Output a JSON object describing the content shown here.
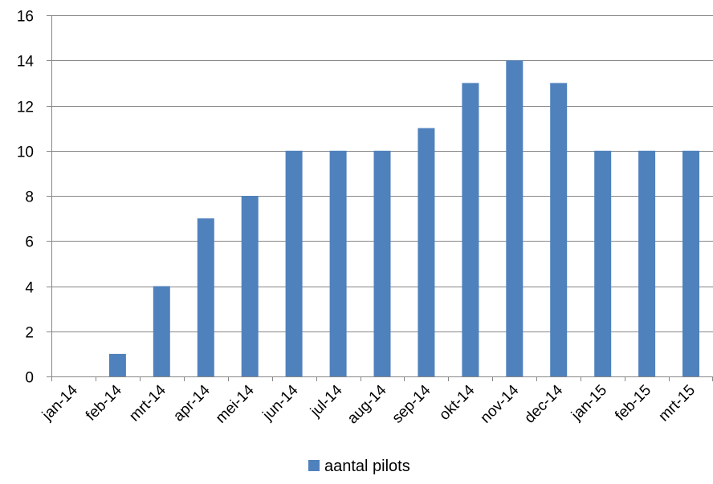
{
  "chart_data": {
    "type": "bar",
    "categories": [
      "jan-14",
      "feb-14",
      "mrt-14",
      "apr-14",
      "mei-14",
      "jun-14",
      "jul-14",
      "aug-14",
      "sep-14",
      "okt-14",
      "nov-14",
      "dec-14",
      "jan-15",
      "feb-15",
      "mrt-15"
    ],
    "series": [
      {
        "name": "aantal pilots",
        "values": [
          0,
          1,
          4,
          7,
          8,
          10,
          10,
          10,
          11,
          13,
          14,
          13,
          10,
          10,
          10
        ],
        "color": "#4f81bd"
      }
    ],
    "title": "",
    "xlabel": "",
    "ylabel": "",
    "ylim": [
      0,
      16
    ],
    "yticks": [
      0,
      2,
      4,
      6,
      8,
      10,
      12,
      14,
      16
    ],
    "grid": true,
    "legend_position": "bottom"
  },
  "colors": {
    "bar": "#4f81bd",
    "grid": "#878787",
    "axis": "#878787"
  }
}
